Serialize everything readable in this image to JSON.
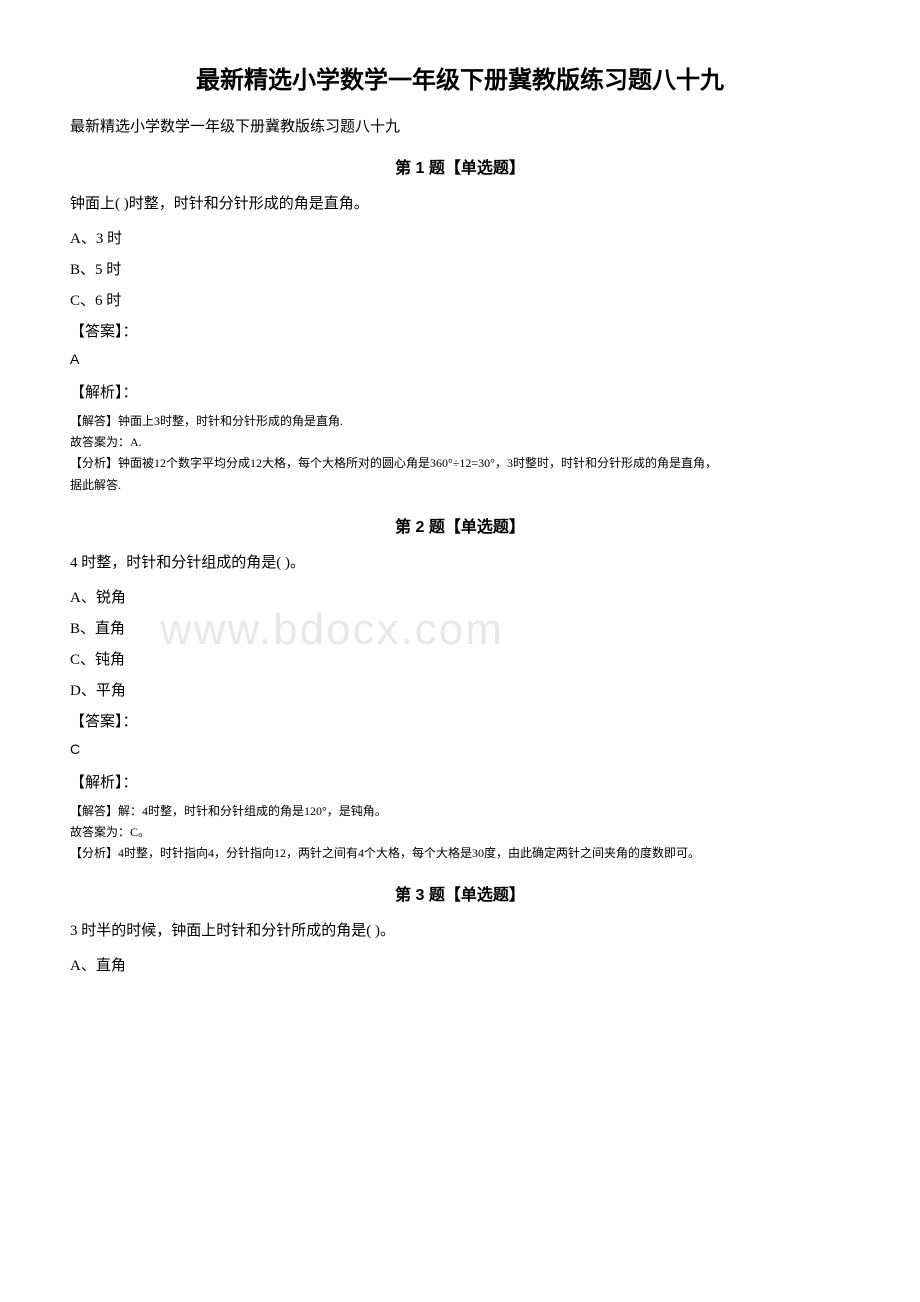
{
  "watermark": "www.bdocx.com",
  "main_title": "最新精选小学数学一年级下册冀教版练习题八十九",
  "subtitle": "最新精选小学数学一年级下册冀教版练习题八十九",
  "q1": {
    "header": "第 1 题【单选题】",
    "text": "钟面上( )时整，时针和分针形成的角是直角。",
    "opt_a": "A、3 时",
    "opt_b": "B、5 时",
    "opt_c": "C、6 时",
    "answer_label": "【答案】：",
    "answer": "A",
    "analysis_label": "【解析】：",
    "line1": "【解答】钟面上3时整，时针和分针形成的角是直角.",
    "line2": "故答案为：A.",
    "line3": "【分析】钟面被12个数字平均分成12大格，每个大格所对的圆心角是360°÷12=30°，3时整时，时针和分针形成的角是直角，",
    "line4": "据此解答."
  },
  "q2": {
    "header": "第 2 题【单选题】",
    "text": "4 时整，时针和分针组成的角是( )。",
    "opt_a": "A、锐角",
    "opt_b": "B、直角",
    "opt_c": "C、钝角",
    "opt_d": "D、平角",
    "answer_label": "【答案】：",
    "answer": "C",
    "analysis_label": "【解析】：",
    "line1": "【解答】解：4时整，时针和分针组成的角是120°，是钝角。",
    "line2": "故答案为：C。",
    "line3": "【分析】4时整，时针指向4，分针指向12，两针之间有4个大格，每个大格是30度，由此确定两针之间夹角的度数即可。"
  },
  "q3": {
    "header": "第 3 题【单选题】",
    "text": "3 时半的时候，钟面上时针和分针所成的角是( )。",
    "opt_a": "A、直角"
  }
}
